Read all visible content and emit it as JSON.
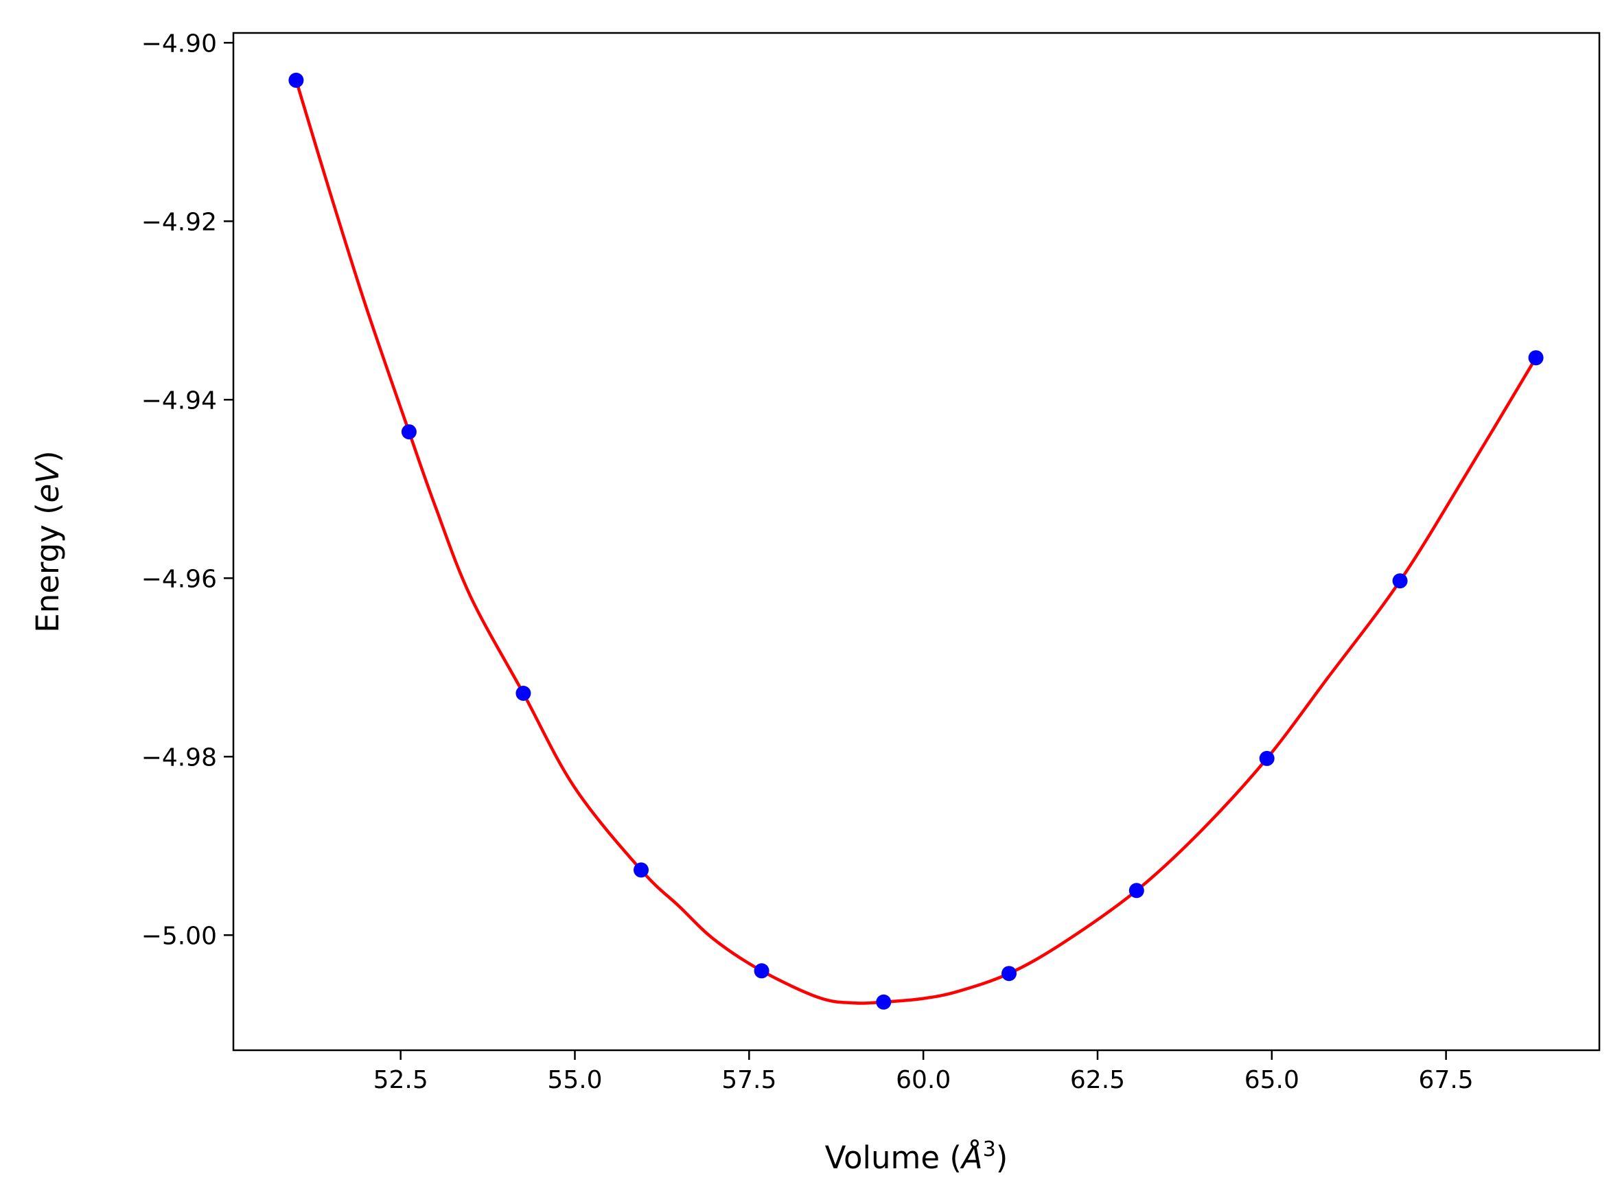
{
  "chart_data": {
    "type": "scatter",
    "title": "",
    "xlabel": "Volume (",
    "xlabel_symbol": "Å",
    "xlabel_exponent": "3",
    "xlabel_close": ")",
    "ylabel": "Energy (",
    "ylabel_unit": "eV",
    "ylabel_close": ")",
    "xlim": [
      50.1,
      69.7
    ],
    "ylim": [
      -5.0129,
      -4.8989
    ],
    "xticks": [
      52.5,
      55.0,
      57.5,
      60.0,
      62.5,
      65.0,
      67.5
    ],
    "xtick_labels": [
      "52.5",
      "55.0",
      "57.5",
      "60.0",
      "62.5",
      "65.0",
      "67.5"
    ],
    "yticks": [
      -4.9,
      -4.92,
      -4.94,
      -4.96,
      -4.98,
      -5.0
    ],
    "ytick_labels": [
      "−4.90",
      "−4.92",
      "−4.94",
      "−4.96",
      "−4.98",
      "−5.00"
    ],
    "grid": false,
    "legend": "none",
    "series": [
      {
        "kind": "points",
        "color": "#0000ff",
        "x": [
          51.0,
          52.62,
          54.26,
          55.95,
          57.68,
          59.43,
          61.23,
          63.06,
          64.93,
          66.84,
          68.79
        ],
        "y": [
          -4.9042,
          -4.9436,
          -4.9729,
          -4.9927,
          -5.004,
          -5.0075,
          -5.0043,
          -4.995,
          -4.9802,
          -4.9603,
          -4.9353
        ]
      },
      {
        "kind": "fit-curve",
        "color": "#ff0000",
        "x": [
          51.0,
          51.5,
          52.0,
          52.62,
          53.0,
          53.5,
          54.26,
          55.0,
          55.95,
          56.5,
          57.0,
          57.68,
          58.5,
          59.0,
          59.43,
          60.0,
          60.5,
          61.23,
          62.0,
          63.06,
          64.0,
          64.93,
          65.8,
          66.84,
          67.8,
          68.79
        ],
        "y": [
          -4.9042,
          -4.9171,
          -4.9295,
          -4.9436,
          -4.952,
          -4.962,
          -4.9729,
          -4.9835,
          -4.9927,
          -4.9968,
          -5.0005,
          -5.004,
          -5.007,
          -5.0076,
          -5.0075,
          -5.0071,
          -5.0063,
          -5.0043,
          -5.0009,
          -4.995,
          -4.9882,
          -4.9802,
          -4.9712,
          -4.9603,
          -4.9482,
          -4.9353
        ]
      }
    ]
  }
}
